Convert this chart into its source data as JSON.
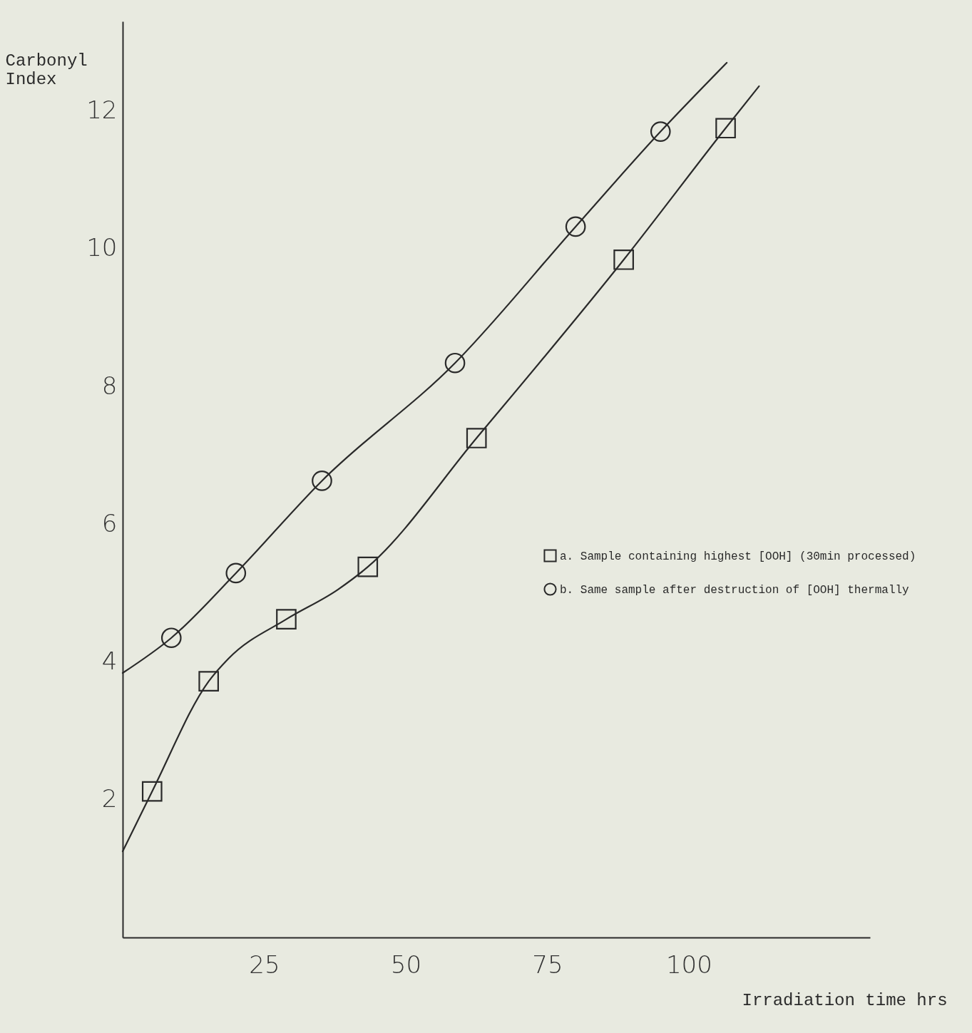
{
  "chart_data": {
    "type": "scatter",
    "xlabel": "Irradiation time hrs",
    "ylabel": "Carbonyl Index",
    "xlim": [
      0,
      132
    ],
    "ylim": [
      0,
      13.3
    ],
    "xticks": [
      25,
      50,
      75,
      100
    ],
    "yticks": [
      2,
      4,
      6,
      8,
      10,
      12
    ],
    "grid": false,
    "legend": "right",
    "series": [
      {
        "name": "a. Sample containing highest [OOH] (30min processed)",
        "color": "#2a2a2a",
        "marker": "square",
        "x": [
          5.2,
          15.2,
          28.9,
          43.3,
          62.5,
          88.5,
          106.5
        ],
        "values": [
          2.12,
          3.72,
          4.62,
          5.38,
          7.25,
          9.84,
          11.75
        ]
      },
      {
        "name": "b. Same sample after destruction of [OOH] thermally",
        "color": "#2a2a2a",
        "marker": "circle",
        "x": [
          8.6,
          20,
          35.2,
          58.7,
          80,
          95
        ],
        "values": [
          4.35,
          5.29,
          6.63,
          8.34,
          10.32,
          11.7
        ]
      },
      {
        "type": "line",
        "color": "#2a2a2a",
        "marker": "none",
        "x": [
          0,
          5.2,
          15.2,
          18.7,
          28.9,
          38,
          43.3,
          62.5,
          88.5,
          106.5,
          112.4
        ],
        "values": [
          1.25,
          2.12,
          3.72,
          4.05,
          4.62,
          5.05,
          5.38,
          7.25,
          9.84,
          11.75,
          12.36
        ]
      },
      {
        "type": "line",
        "color": "#2a2a2a",
        "marker": "none",
        "x": [
          0,
          8.6,
          20,
          35.2,
          58.7,
          80,
          95,
          106.7
        ],
        "values": [
          3.84,
          4.35,
          5.29,
          6.63,
          8.34,
          10.32,
          11.7,
          12.7
        ]
      }
    ]
  }
}
